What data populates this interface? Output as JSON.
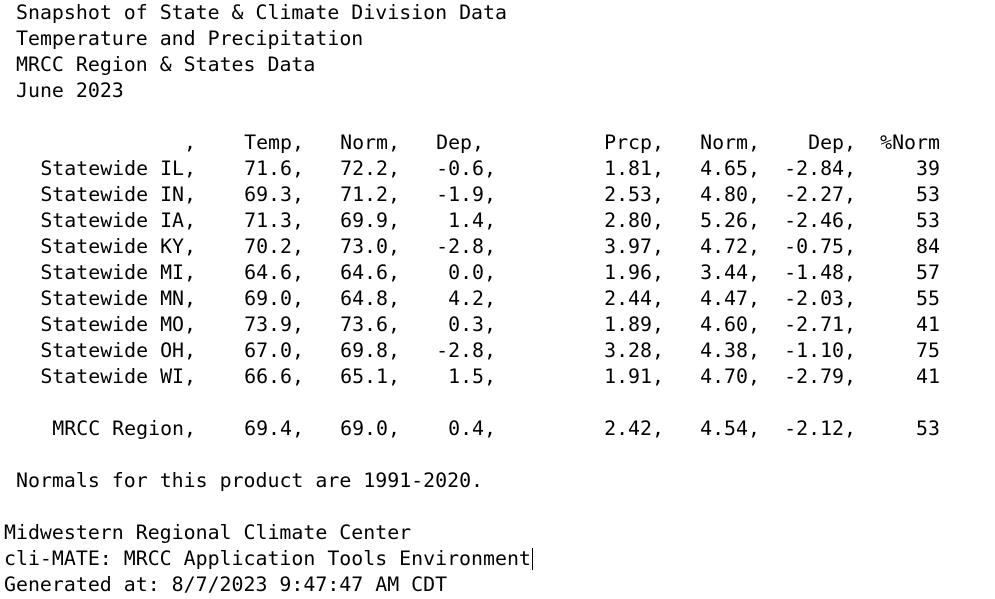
{
  "header": {
    "lines": [
      "Snapshot of State & Climate Division Data",
      "Temperature and Precipitation",
      "MRCC Region & States Data",
      "June 2023"
    ]
  },
  "table": {
    "columns": [
      ",",
      "Temp,",
      "Norm,",
      "Dep,",
      "Prcp,",
      "Norm,",
      "Dep,",
      "%Norm"
    ],
    "rows": [
      [
        "Statewide IL,",
        "71.6,",
        "72.2,",
        "-0.6,",
        "1.81,",
        "4.65,",
        "-2.84,",
        "39"
      ],
      [
        "Statewide IN,",
        "69.3,",
        "71.2,",
        "-1.9,",
        "2.53,",
        "4.80,",
        "-2.27,",
        "53"
      ],
      [
        "Statewide IA,",
        "71.3,",
        "69.9,",
        "1.4,",
        "2.80,",
        "5.26,",
        "-2.46,",
        "53"
      ],
      [
        "Statewide KY,",
        "70.2,",
        "73.0,",
        "-2.8,",
        "3.97,",
        "4.72,",
        "-0.75,",
        "84"
      ],
      [
        "Statewide MI,",
        "64.6,",
        "64.6,",
        "0.0,",
        "1.96,",
        "3.44,",
        "-1.48,",
        "57"
      ],
      [
        "Statewide MN,",
        "69.0,",
        "64.8,",
        "4.2,",
        "2.44,",
        "4.47,",
        "-2.03,",
        "55"
      ],
      [
        "Statewide MO,",
        "73.9,",
        "73.6,",
        "0.3,",
        "1.89,",
        "4.60,",
        "-2.71,",
        "41"
      ],
      [
        "Statewide OH,",
        "67.0,",
        "69.8,",
        "-2.8,",
        "3.28,",
        "4.38,",
        "-1.10,",
        "75"
      ],
      [
        "Statewide WI,",
        "66.6,",
        "65.1,",
        "1.5,",
        "1.91,",
        "4.70,",
        "-2.79,",
        "41"
      ]
    ],
    "region": [
      "MRCC Region,",
      "69.4,",
      "69.0,",
      "0.4,",
      "2.42,",
      "4.54,",
      "-2.12,",
      "53"
    ]
  },
  "note": "Normals for this product are 1991-2020.",
  "footer": {
    "lines": [
      "Midwestern Regional Climate Center",
      "cli-MATE: MRCC Application Tools Environment",
      "Generated at: 8/7/2023 9:47:47 AM CDT"
    ]
  }
}
